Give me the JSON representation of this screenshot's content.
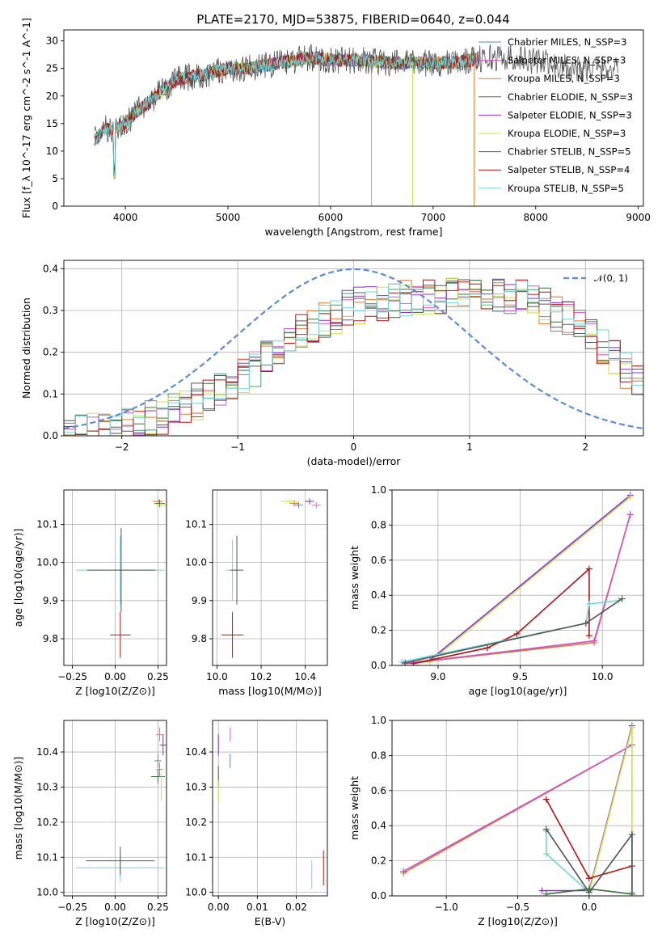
{
  "palette": {
    "chabrier_miles": "#4a9a7a",
    "salpeter_miles": "#cc55cc",
    "kroupa_miles": "#d9782a",
    "chabrier_elodie": "#3a6e3a",
    "salpeter_elodie": "#8b2fc9",
    "kroupa_elodie": "#c8e04a",
    "chabrier_stelib": "#555555",
    "salpeter_stelib": "#b01515",
    "kroupa_stelib": "#6fd6d6",
    "gauss": "#5b8bdb",
    "extra1": "#e86fb0",
    "extra2": "#5588cc"
  },
  "chart_data": [
    {
      "id": "spectrum",
      "type": "line",
      "title": "PLATE=2170, MJD=53875, FIBERID=0640, z=0.044",
      "xlabel": "wavelength [Angstrom, rest frame]",
      "ylabel": "Flux [f_λ 10^-17 erg cm^-2 s^-1 A^-1]",
      "xlim": [
        3400,
        9050
      ],
      "ylim": [
        0,
        32
      ],
      "xticks": [
        "4000",
        "5000",
        "6000",
        "7000",
        "8000",
        "9000"
      ],
      "yticks": [
        "0",
        "5",
        "10",
        "15",
        "20",
        "25",
        "30"
      ],
      "grid": false,
      "legend_position": "right",
      "legend": [
        "Chabrier MILES, N_SSP=3",
        "Salpeter MILES, N_SSP=3",
        "Kroupa MILES, N_SSP=3",
        "Chabrier ELODIE, N_SSP=3",
        "Salpeter ELODIE, N_SSP=3",
        "Kroupa ELODIE, N_SSP=3",
        "Chabrier STELIB, N_SSP=5",
        "Salpeter STELIB, N_SSP=4",
        "Kroupa STELIB, N_SSP=5"
      ],
      "continuum_x": [
        3700,
        3800,
        3900,
        4000,
        4100,
        4300,
        4500,
        4800,
        5000,
        5200,
        5500,
        5800,
        6000,
        6300,
        6600,
        6900,
        7200,
        7500,
        7800,
        8100,
        8400,
        8800
      ],
      "continuum_y": [
        12,
        14,
        14,
        15,
        17,
        20,
        23,
        24,
        25,
        25,
        26,
        27,
        26.5,
        26.5,
        26,
        26,
        26,
        27,
        27,
        26,
        25,
        25
      ]
    },
    {
      "id": "residuals",
      "type": "line",
      "xlabel": "(data-model)/error",
      "ylabel": "Normed distribution",
      "xlim": [
        -2.5,
        2.5
      ],
      "ylim": [
        0,
        0.42
      ],
      "xticks": [
        "−2",
        "−1",
        "0",
        "1",
        "2"
      ],
      "yticks": [
        "0.0",
        "0.1",
        "0.2",
        "0.3",
        "0.4"
      ],
      "grid": true,
      "legend_position": "top-right",
      "legend": [
        "𝒩(0, 1)"
      ],
      "bins": 50,
      "hist_x": [
        -2.5,
        -2.0,
        -1.5,
        -1.0,
        -0.5,
        0.0,
        0.5,
        1.0,
        1.5,
        2.0,
        2.5
      ],
      "hist_y": [
        0.0,
        0.02,
        0.06,
        0.13,
        0.24,
        0.31,
        0.33,
        0.34,
        0.33,
        0.26,
        0.11
      ]
    },
    {
      "id": "age_vs_Z",
      "type": "scatter",
      "xlabel": "Z [log10(Z/Z⊙)]",
      "ylabel": "age [log10(age/yr)]",
      "xlim": [
        -0.3,
        0.3
      ],
      "ylim": [
        9.73,
        10.19
      ],
      "xticks": [
        "−0.25",
        "0.00",
        "0.25"
      ],
      "yticks": [
        "9.8",
        "9.9",
        "10.0",
        "10.1"
      ],
      "grid": true,
      "points": [
        {
          "x": 0.03,
          "y": 9.81,
          "xerr": 0.06,
          "yerr": 0.06,
          "c": "salpeter_stelib"
        },
        {
          "x": 0.03,
          "y": 9.98,
          "xerr": 0.26,
          "yerr": 0.09,
          "c": "kroupa_stelib"
        },
        {
          "x": 0.035,
          "y": 9.98,
          "xerr": 0.2,
          "yerr": 0.11,
          "c": "chabrier_stelib"
        },
        {
          "x": 0.25,
          "y": 10.16,
          "xerr": 0.03,
          "yerr": 0.005,
          "c": "kroupa_miles"
        },
        {
          "x": 0.26,
          "y": 10.155,
          "xerr": 0.03,
          "yerr": 0.01,
          "c": "chabrier_elodie"
        },
        {
          "x": 0.27,
          "y": 10.15,
          "xerr": 0.03,
          "yerr": 0.005,
          "c": "kroupa_elodie"
        }
      ]
    },
    {
      "id": "age_vs_mass",
      "type": "scatter",
      "xlabel": "mass [log10(M/M⊙)]",
      "ylabel": "",
      "xlim": [
        9.98,
        10.5
      ],
      "ylim": [
        9.73,
        10.19
      ],
      "xticks": [
        "10.0",
        "10.2",
        "10.4"
      ],
      "yticks": [
        "9.8",
        "9.9",
        "10.0",
        "10.1"
      ],
      "grid": true,
      "points": [
        {
          "x": 10.07,
          "y": 9.81,
          "xerr": 0.05,
          "yerr": 0.06,
          "c": "salpeter_stelib"
        },
        {
          "x": 10.07,
          "y": 9.98,
          "xerr": 0.03,
          "yerr": 0.08,
          "c": "kroupa_stelib"
        },
        {
          "x": 10.09,
          "y": 9.98,
          "xerr": 0.03,
          "yerr": 0.09,
          "c": "chabrier_stelib"
        },
        {
          "x": 10.33,
          "y": 10.16,
          "xerr": 0.04,
          "yerr": 0.005,
          "c": "kroupa_elodie"
        },
        {
          "x": 10.35,
          "y": 10.155,
          "xerr": 0.02,
          "yerr": 0.008,
          "c": "kroupa_miles"
        },
        {
          "x": 10.37,
          "y": 10.15,
          "xerr": 0.02,
          "yerr": 0.008,
          "c": "extra2"
        },
        {
          "x": 10.42,
          "y": 10.16,
          "xerr": 0.02,
          "yerr": 0.008,
          "c": "salpeter_elodie"
        },
        {
          "x": 10.45,
          "y": 10.15,
          "xerr": 0.02,
          "yerr": 0.008,
          "c": "extra1"
        }
      ]
    },
    {
      "id": "massweight_vs_age",
      "type": "line",
      "xlabel": "age [log10(age/yr)]",
      "ylabel": "mass weight",
      "xlim": [
        8.72,
        10.25
      ],
      "ylim": [
        0,
        1.0
      ],
      "xticks": [
        "9.0",
        "9.5",
        "10.0"
      ],
      "yticks": [
        "0.0",
        "0.2",
        "0.4",
        "0.6",
        "0.8",
        "1.0"
      ],
      "grid": true,
      "series": [
        {
          "c": "salpeter_elodie",
          "x": [
            8.8,
            8.95,
            10.17
          ],
          "y": [
            0.01,
            0.03,
            0.97
          ]
        },
        {
          "c": "kroupa_elodie",
          "x": [
            8.8,
            8.95,
            10.17
          ],
          "y": [
            0.01,
            0.02,
            0.96
          ]
        },
        {
          "c": "kroupa_miles",
          "x": [
            8.8,
            9.95,
            10.17
          ],
          "y": [
            0.01,
            0.13,
            0.86
          ]
        },
        {
          "c": "salpeter_miles",
          "x": [
            8.8,
            9.95,
            10.17
          ],
          "y": [
            0.01,
            0.14,
            0.86
          ]
        },
        {
          "c": "salpeter_stelib",
          "x": [
            8.85,
            9.3,
            9.48,
            9.92,
            9.92
          ],
          "y": [
            0.01,
            0.1,
            0.18,
            0.55,
            0.17
          ]
        },
        {
          "c": "kroupa_stelib",
          "x": [
            8.78,
            9.9,
            9.92,
            10.1
          ],
          "y": [
            0.02,
            0.24,
            0.35,
            0.37
          ]
        },
        {
          "c": "chabrier_stelib",
          "x": [
            8.8,
            9.9,
            10.12
          ],
          "y": [
            0.015,
            0.24,
            0.38
          ]
        }
      ]
    },
    {
      "id": "mass_vs_Z",
      "type": "scatter",
      "xlabel": "Z [log10(Z/Z⊙)]",
      "ylabel": "mass [log10(M/M⊙)]",
      "xlim": [
        -0.3,
        0.3
      ],
      "ylim": [
        9.99,
        10.49
      ],
      "xticks": [
        "−0.25",
        "0.00",
        "0.25"
      ],
      "yticks": [
        "10.0",
        "10.1",
        "10.2",
        "10.3",
        "10.4"
      ],
      "grid": true,
      "points": [
        {
          "x": 0.03,
          "y": 10.07,
          "xerr": 0.26,
          "yerr": 0.04,
          "c": "kroupa_stelib"
        },
        {
          "x": 0.03,
          "y": 10.09,
          "xerr": 0.2,
          "yerr": 0.04,
          "c": "chabrier_stelib"
        },
        {
          "x": 0.25,
          "y": 10.33,
          "xerr": 0.04,
          "yerr": 0.02,
          "c": "chabrier_elodie"
        },
        {
          "x": 0.26,
          "y": 10.35,
          "xerr": 0.02,
          "yerr": 0.02,
          "c": "kroupa_miles"
        },
        {
          "x": 0.25,
          "y": 10.375,
          "xerr": 0.02,
          "yerr": 0.02,
          "c": "extra2"
        },
        {
          "x": 0.27,
          "y": 10.3,
          "xerr": 0.03,
          "yerr": 0.04,
          "c": "kroupa_elodie"
        },
        {
          "x": 0.28,
          "y": 10.42,
          "xerr": 0.02,
          "yerr": 0.03,
          "c": "salpeter_elodie"
        },
        {
          "x": 0.26,
          "y": 10.45,
          "xerr": 0.02,
          "yerr": 0.02,
          "c": "extra1"
        }
      ]
    },
    {
      "id": "mass_vs_ebv",
      "type": "scatter",
      "xlabel": "E(B-V)",
      "ylabel": "",
      "xlim": [
        -0.0015,
        0.028
      ],
      "ylim": [
        9.99,
        10.49
      ],
      "xticks": [
        "0.00",
        "0.01",
        "0.02"
      ],
      "yticks": [
        "10.0",
        "10.1",
        "10.2",
        "10.3",
        "10.4"
      ],
      "grid": true,
      "points": [
        {
          "x": 0.0,
          "y": 10.42,
          "xerr": 0,
          "yerr": 0.03,
          "c": "salpeter_elodie"
        },
        {
          "x": 0.0,
          "y": 10.33,
          "xerr": 0,
          "yerr": 0.03,
          "c": "chabrier_elodie"
        },
        {
          "x": 0.0,
          "y": 10.29,
          "xerr": 0,
          "yerr": 0.03,
          "c": "kroupa_elodie"
        },
        {
          "x": 0.003,
          "y": 10.45,
          "xerr": 0,
          "yerr": 0.02,
          "c": "extra1"
        },
        {
          "x": 0.003,
          "y": 10.375,
          "xerr": 0,
          "yerr": 0.02,
          "c": "extra2"
        },
        {
          "x": 0.024,
          "y": 10.05,
          "xerr": 0,
          "yerr": 0.04,
          "c": "kroupa_stelib"
        },
        {
          "x": 0.027,
          "y": 10.07,
          "xerr": 0,
          "yerr": 0.05,
          "c": "salpeter_stelib"
        }
      ]
    },
    {
      "id": "massweight_vs_Z",
      "type": "line",
      "xlabel": "Z [log10(Z/Z⊙)]",
      "ylabel": "mass weight",
      "xlim": [
        -1.38,
        0.38
      ],
      "ylim": [
        0,
        1.0
      ],
      "xticks": [
        "−1.0",
        "−0.5",
        "0.0"
      ],
      "yticks": [
        "0.0",
        "0.2",
        "0.4",
        "0.6",
        "0.8",
        "1.0"
      ],
      "grid": true,
      "series": [
        {
          "c": "kroupa_miles",
          "x": [
            -1.3,
            0.3
          ],
          "y": [
            0.13,
            0.86
          ]
        },
        {
          "c": "salpeter_miles",
          "x": [
            -1.3,
            0.3
          ],
          "y": [
            0.14,
            0.86
          ]
        },
        {
          "c": "salpeter_elodie",
          "x": [
            -0.33,
            0.0,
            0.3
          ],
          "y": [
            0.03,
            0.03,
            0.97
          ]
        },
        {
          "c": "kroupa_elodie",
          "x": [
            0.0,
            0.3,
            0.3
          ],
          "y": [
            0.02,
            0.96,
            0.01
          ]
        },
        {
          "c": "salpeter_stelib",
          "x": [
            -0.3,
            0.0,
            0.3
          ],
          "y": [
            0.55,
            0.1,
            0.17
          ]
        },
        {
          "c": "kroupa_stelib",
          "x": [
            -0.3,
            -0.3,
            0.0,
            0.3,
            0.3
          ],
          "y": [
            0.37,
            0.24,
            0.02,
            0.35,
            0.02
          ]
        },
        {
          "c": "chabrier_stelib",
          "x": [
            -0.3,
            0.0,
            0.3,
            0.3
          ],
          "y": [
            0.38,
            0.02,
            0.35,
            0.01
          ]
        },
        {
          "c": "chabrier_elodie",
          "x": [
            -0.3,
            0.0,
            0.3
          ],
          "y": [
            0.01,
            0.04,
            0.01
          ]
        }
      ]
    }
  ]
}
